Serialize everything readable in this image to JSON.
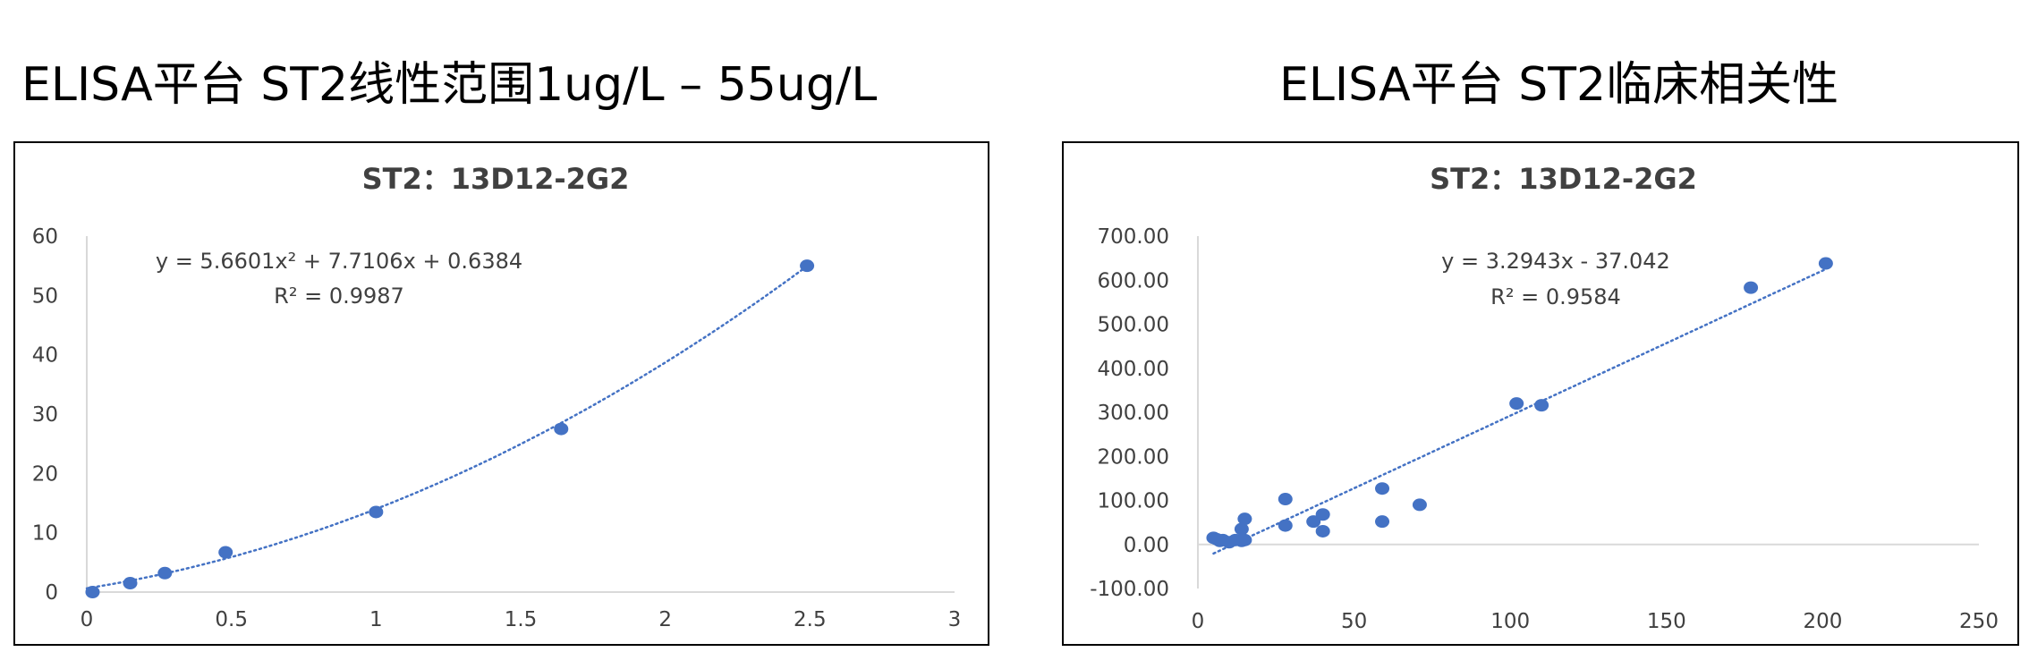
{
  "headings": {
    "left": "ELISA平台  ST2线性范围1ug/L – 55ug/L",
    "right": "ELISA平台 ST2临床相关性"
  },
  "colors": {
    "point": "#4472C4",
    "trendline": "#4472C4",
    "axis": "#D9D9D9"
  },
  "chart_data": [
    {
      "type": "scatter",
      "title": "ST2：13D12-2G2",
      "xlabel": "",
      "ylabel": "",
      "xlim": [
        0,
        3
      ],
      "ylim": [
        0,
        60
      ],
      "xticks": [
        0,
        0.5,
        1,
        1.5,
        2,
        2.5,
        3
      ],
      "yticks": [
        0,
        10,
        20,
        30,
        40,
        50,
        60
      ],
      "xtick_labels": [
        "0",
        "0.5",
        "1",
        "1.5",
        "2",
        "2.5",
        "3"
      ],
      "ytick_labels": [
        "0",
        "10",
        "20",
        "30",
        "40",
        "50",
        "60"
      ],
      "grid": false,
      "series": [
        {
          "x": [
            0.02,
            0.15,
            0.27,
            0.48,
            1.0,
            1.64,
            2.49
          ],
          "y": [
            0.0,
            1.5,
            3.2,
            6.7,
            13.5,
            27.5,
            55.0
          ]
        }
      ],
      "trendline": {
        "kind": "polynomial",
        "coefficients": [
          5.6601,
          7.7106,
          0.6384
        ],
        "x_range": [
          0,
          2.49
        ],
        "equation": "y = 5.6601x² + 7.7106x + 0.6384",
        "r2": "R² = 0.9987"
      }
    },
    {
      "type": "scatter",
      "title": "ST2：13D12-2G2",
      "xlabel": "",
      "ylabel": "",
      "xlim": [
        0,
        250
      ],
      "ylim": [
        -100,
        700
      ],
      "xticks": [
        0,
        50,
        100,
        150,
        200,
        250
      ],
      "yticks": [
        -100,
        0,
        100,
        200,
        300,
        400,
        500,
        600,
        700
      ],
      "xtick_labels": [
        "0",
        "50",
        "100",
        "150",
        "200",
        "250"
      ],
      "ytick_labels": [
        "-100.00",
        "0.00",
        "100.00",
        "200.00",
        "300.00",
        "400.00",
        "500.00",
        "600.00",
        "700.00"
      ],
      "grid": false,
      "series": [
        {
          "x": [
            5,
            6,
            7,
            8,
            10,
            12,
            14,
            15,
            14,
            15,
            28,
            28,
            37,
            40,
            40,
            59,
            59,
            71,
            102,
            110,
            177,
            201
          ],
          "y": [
            15,
            12,
            8,
            10,
            5,
            10,
            8,
            10,
            35,
            58,
            43,
            103,
            52,
            68,
            30,
            127,
            52,
            90,
            320,
            316,
            583,
            638
          ]
        }
      ],
      "trendline": {
        "kind": "linear",
        "coefficients": [
          3.2943,
          -37.042
        ],
        "x_range": [
          5,
          201
        ],
        "equation": "y = 3.2943x - 37.042",
        "r2": "R² = 0.9584"
      }
    }
  ]
}
